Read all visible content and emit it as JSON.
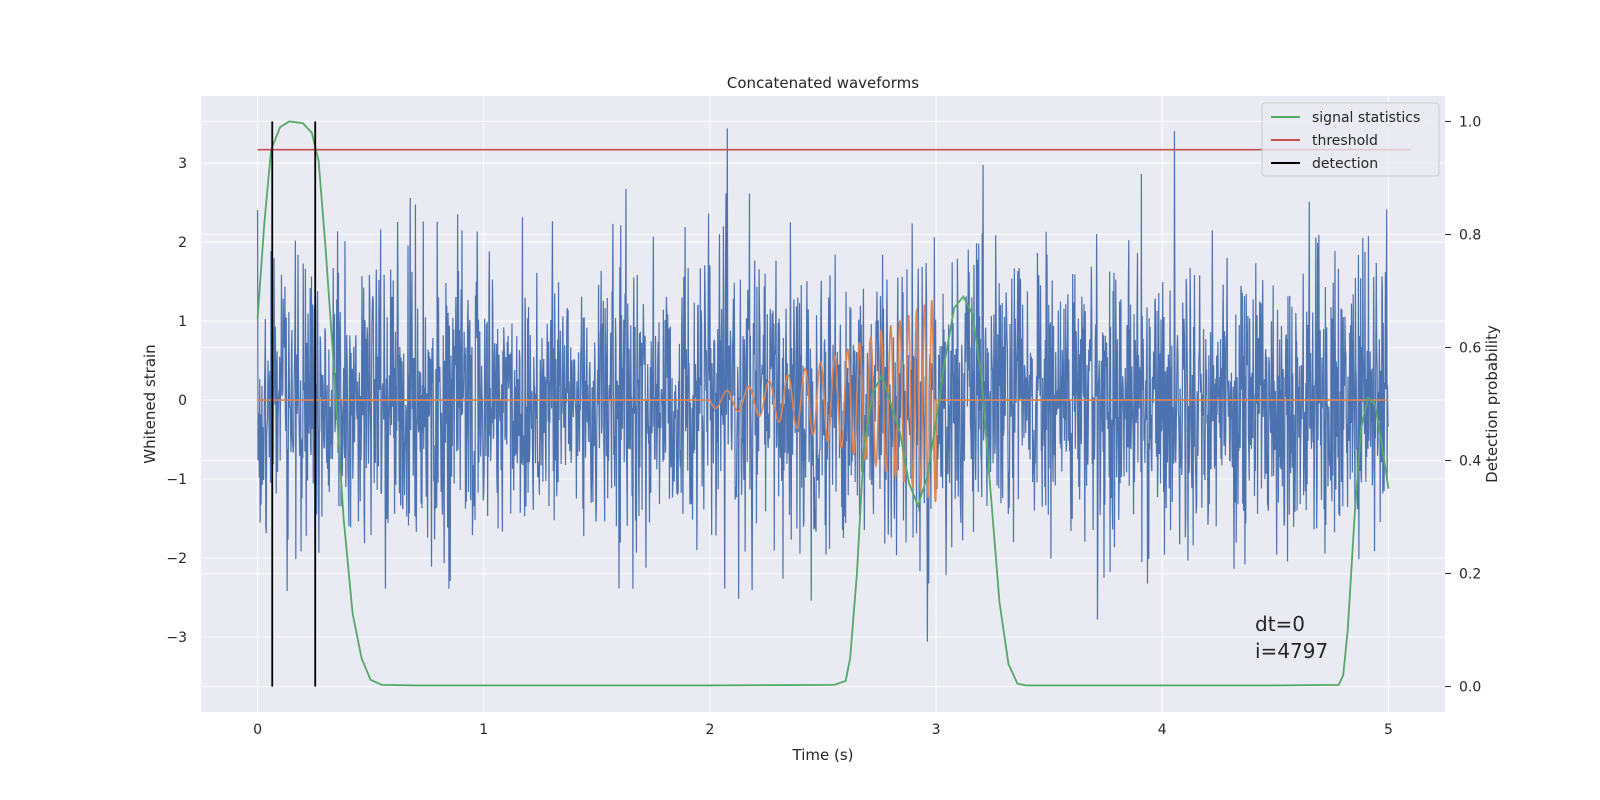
{
  "chart_data": {
    "type": "line",
    "title": "Concatenated waveforms",
    "xlabel": "Time (s)",
    "ylabel": "Whitened strain",
    "y2label": "Detection probability",
    "xlim": [
      -0.25,
      5.25
    ],
    "ylim": [
      -3.95,
      3.85
    ],
    "y2lim": [
      -0.045,
      1.045
    ],
    "xticks": [
      0,
      1,
      2,
      3,
      4,
      5
    ],
    "yticks": [
      -3,
      -2,
      -1,
      0,
      1,
      2,
      3
    ],
    "y2ticks": [
      0.0,
      0.2,
      0.4,
      0.6,
      0.8,
      1.0
    ],
    "xtick_labels": [
      "0",
      "1",
      "2",
      "3",
      "4",
      "5"
    ],
    "ytick_labels": [
      "−3",
      "−2",
      "−1",
      "0",
      "1",
      "2",
      "3"
    ],
    "y2tick_labels": [
      "0.0",
      "0.2",
      "0.4",
      "0.6",
      "0.8",
      "1.0"
    ],
    "grid": true,
    "legend_position": "top-right",
    "colors": {
      "background": "#eaeaf2",
      "strain": "#4c72b0",
      "injected": "#dd8452",
      "signal_statistics": "#55a868",
      "threshold": "#c44e52",
      "detection": "#000000"
    },
    "legend": [
      {
        "label": "signal statistics",
        "color": "#55a868"
      },
      {
        "label": "threshold",
        "color": "#c44e52"
      },
      {
        "label": "detection",
        "color": "#000000"
      }
    ],
    "series": [
      {
        "name": "whitened strain",
        "kind": "noise",
        "x_range": [
          0,
          5
        ],
        "amplitude_std": 0.9,
        "peak_min": -3.6,
        "peak_max": 3.5
      },
      {
        "name": "injected waveform",
        "kind": "chirp",
        "x_range": [
          2.0,
          3.0
        ],
        "amplitude_start": 0.1,
        "amplitude_end": 1.3,
        "frequency_start_hz": 10,
        "frequency_end_hz": 32,
        "baseline": 0
      },
      {
        "name": "signal statistics",
        "axis": "right",
        "x": [
          0.0,
          0.03,
          0.06,
          0.1,
          0.14,
          0.2,
          0.24,
          0.27,
          0.3,
          0.34,
          0.38,
          0.42,
          0.46,
          0.5,
          0.55,
          0.7,
          1.0,
          2.0,
          2.55,
          2.6,
          2.62,
          2.65,
          2.68,
          2.72,
          2.76,
          2.8,
          2.84,
          2.88,
          2.92,
          2.96,
          3.0,
          3.04,
          3.08,
          3.12,
          3.16,
          3.2,
          3.24,
          3.28,
          3.32,
          3.36,
          3.4,
          3.6,
          4.0,
          4.5,
          4.78,
          4.8,
          4.82,
          4.85,
          4.88,
          4.91,
          4.94,
          4.97,
          5.0
        ],
        "y": [
          0.65,
          0.82,
          0.95,
          0.99,
          1.0,
          0.997,
          0.98,
          0.93,
          0.78,
          0.55,
          0.3,
          0.13,
          0.05,
          0.012,
          0.003,
          0.002,
          0.002,
          0.002,
          0.003,
          0.01,
          0.05,
          0.2,
          0.42,
          0.52,
          0.55,
          0.5,
          0.45,
          0.36,
          0.32,
          0.37,
          0.47,
          0.58,
          0.67,
          0.69,
          0.66,
          0.55,
          0.35,
          0.15,
          0.04,
          0.005,
          0.002,
          0.002,
          0.002,
          0.002,
          0.003,
          0.02,
          0.1,
          0.3,
          0.46,
          0.51,
          0.5,
          0.43,
          0.35
        ]
      },
      {
        "name": "threshold",
        "axis": "right",
        "x": [
          0,
          5.1
        ],
        "y": [
          0.95,
          0.95
        ]
      },
      {
        "name": "detection",
        "axis": "right",
        "type": "vlines",
        "x": [
          0.065,
          0.255
        ],
        "ymin": 0.0,
        "ymax": 1.0
      }
    ],
    "annotations": [
      "dt=0",
      "i=4797"
    ]
  }
}
